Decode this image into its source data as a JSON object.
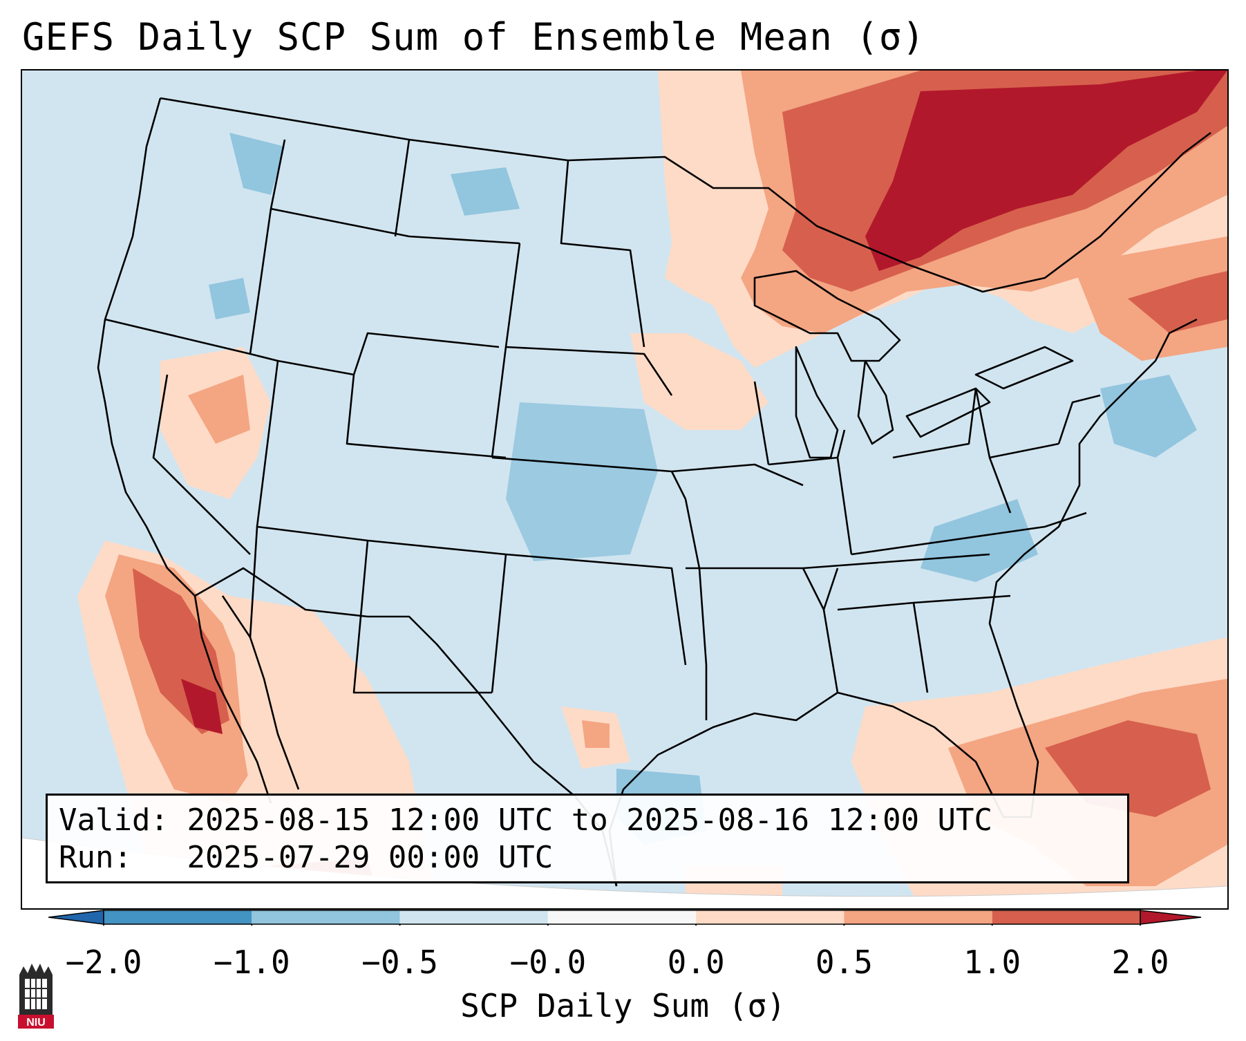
{
  "title": "GEFS Daily SCP Sum of Ensemble Mean (σ)",
  "info": {
    "valid_label": "Valid:",
    "valid_range": "2025-08-15 12:00 UTC to 2025-08-16 12:00 UTC",
    "run_label": "Run:",
    "run_time": "2025-07-29 00:00 UTC"
  },
  "colorbar": {
    "label": "SCP Daily Sum (σ)",
    "ticks": [
      "−2.0",
      "−1.0",
      "−0.5",
      "−0.0",
      "0.0",
      "0.5",
      "1.0",
      "2.0"
    ],
    "colors": [
      "#4393c3",
      "#92c5de",
      "#d1e5f0",
      "#f7f7f7",
      "#fddbc7",
      "#f4a582",
      "#d6604d"
    ],
    "under_color": "#2166ac",
    "over_color": "#b2182b"
  },
  "map": {
    "background_color": "#d1e5f0",
    "outside_color": "#ffffff",
    "line_color": "#000000"
  },
  "logo": {
    "text": "NIU"
  }
}
